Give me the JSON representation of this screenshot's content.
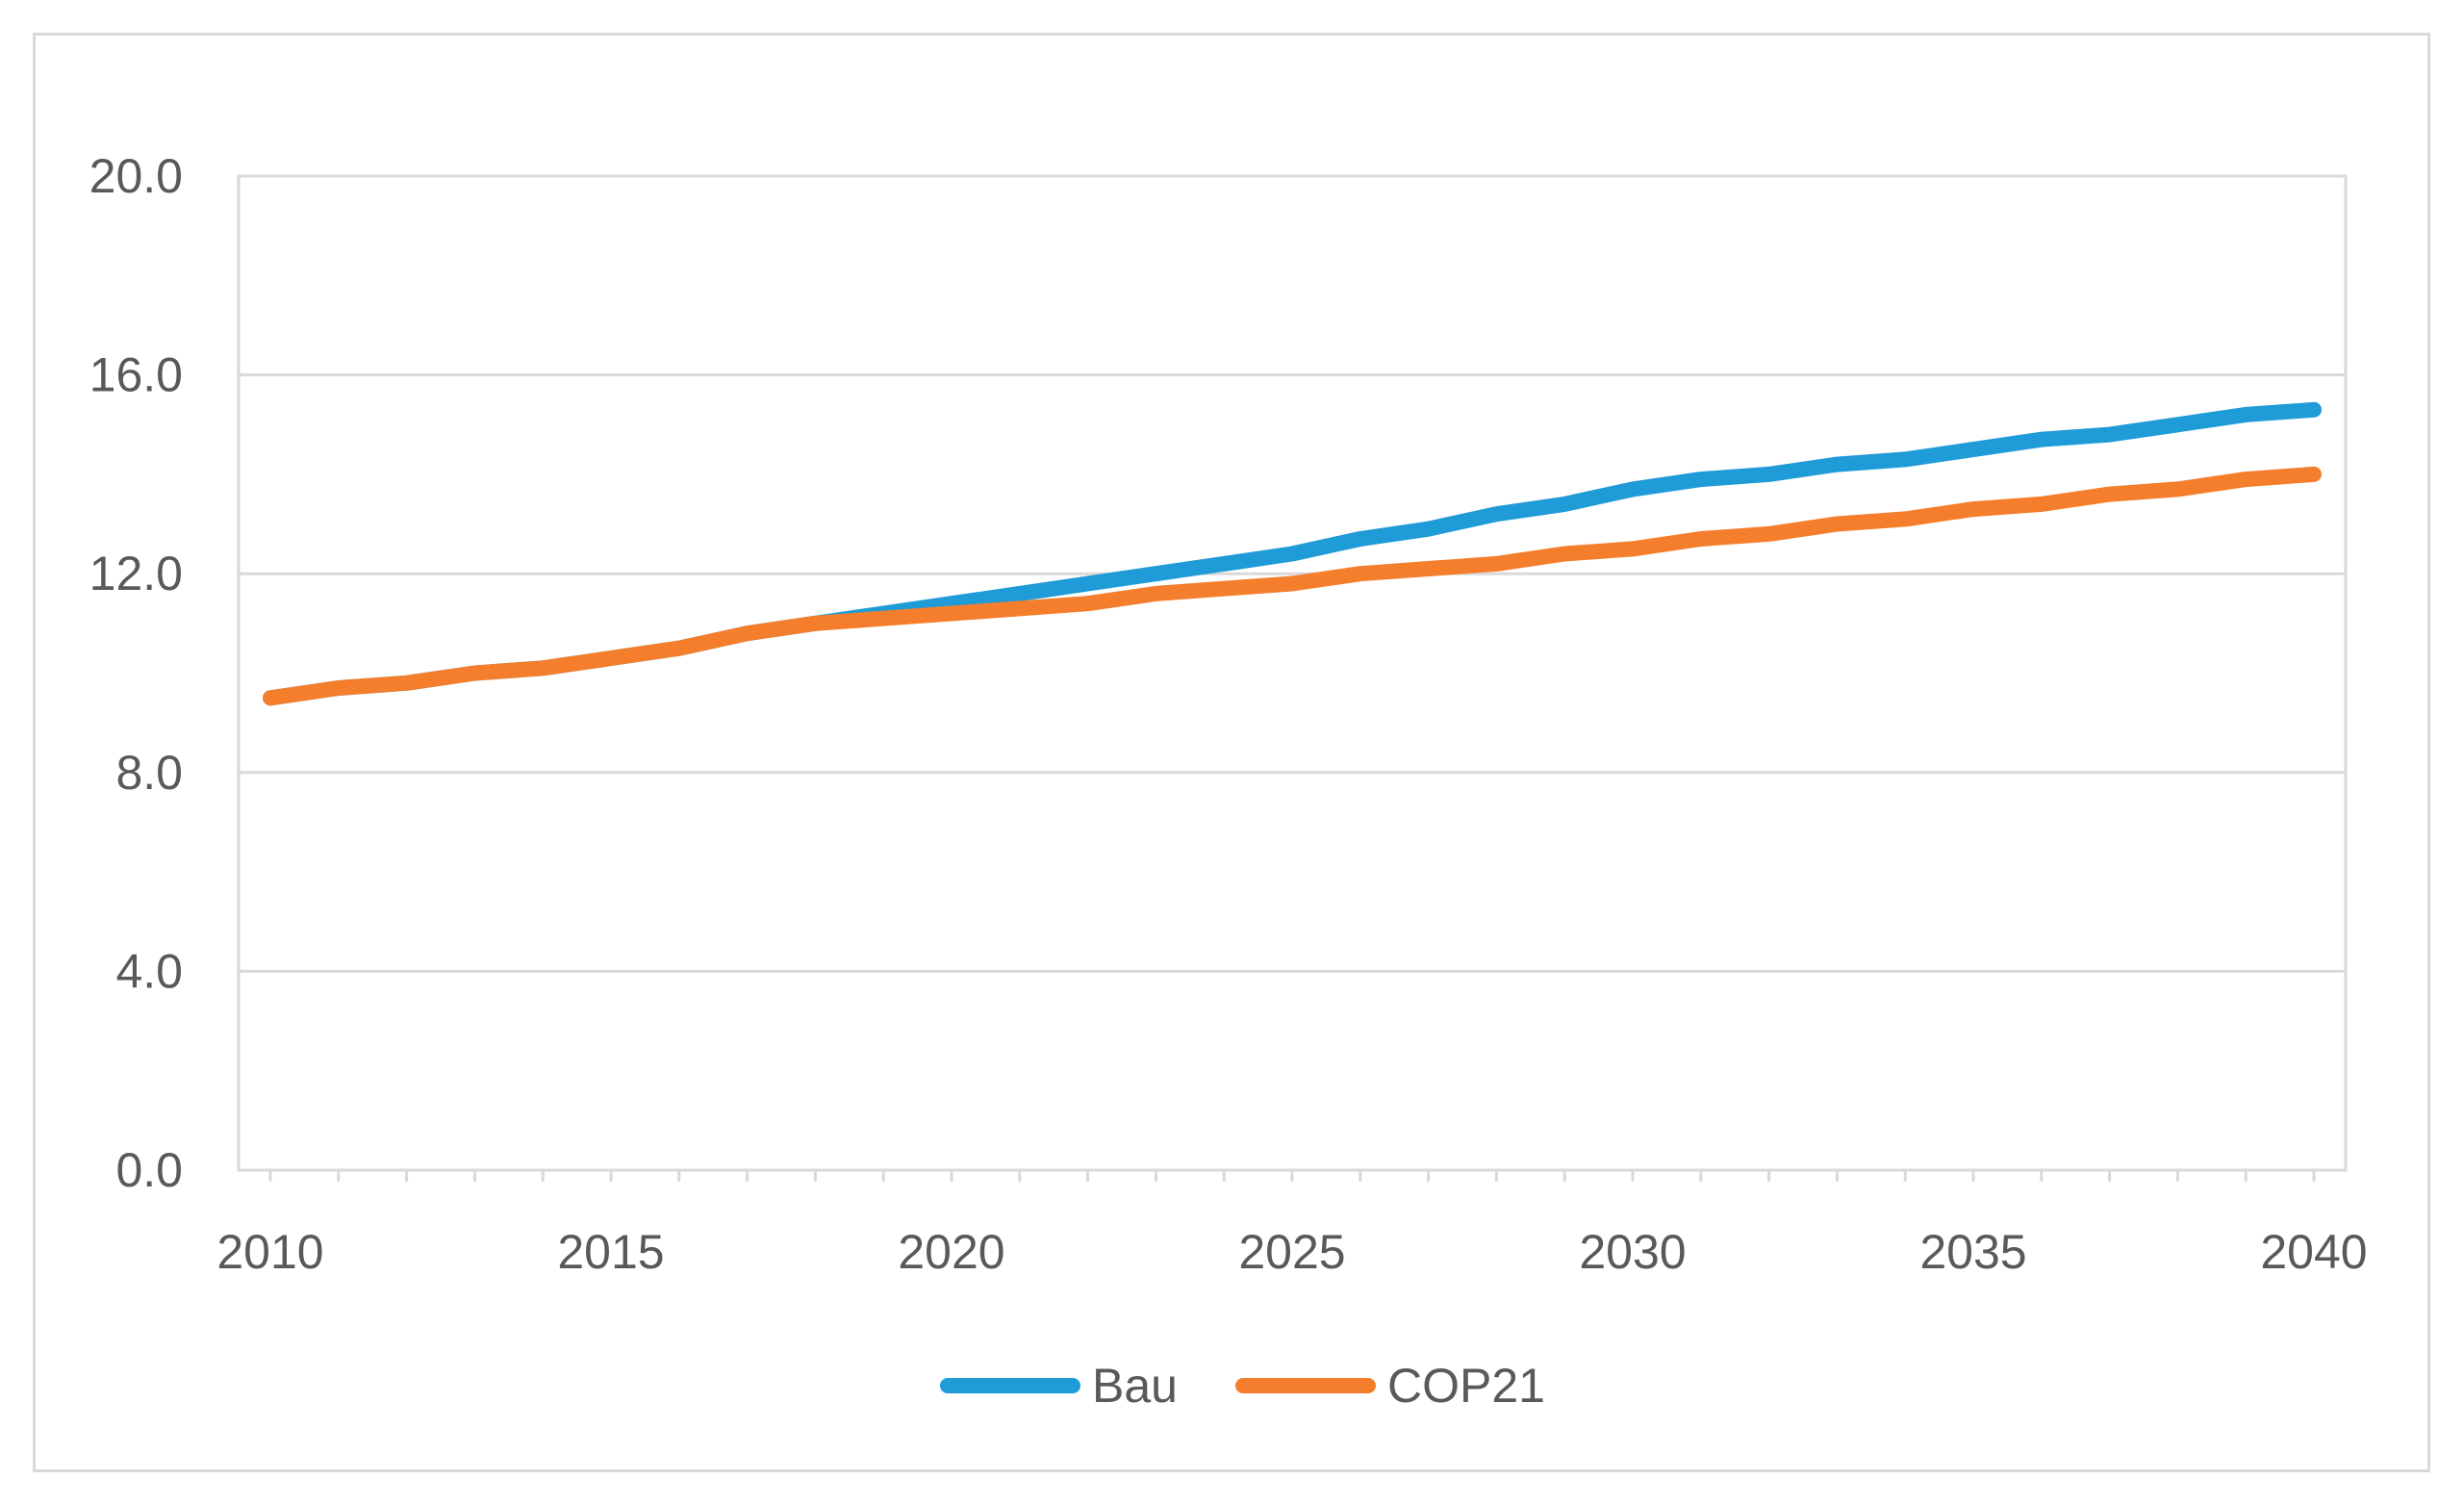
{
  "chart_data": {
    "type": "line",
    "title": "",
    "xlabel": "",
    "ylabel": "",
    "xlim": [
      2010,
      2040
    ],
    "ylim": [
      0,
      20
    ],
    "x_ticks": [
      2010,
      2015,
      2020,
      2025,
      2030,
      2035,
      2040
    ],
    "x_tick_labels": [
      "2010",
      "2015",
      "2020",
      "2025",
      "2030",
      "2035",
      "2040"
    ],
    "y_ticks": [
      0,
      4,
      8,
      12,
      16,
      20
    ],
    "y_tick_labels": [
      "0.0",
      "4.0",
      "8.0",
      "12.0",
      "16.0",
      "20.0"
    ],
    "grid": true,
    "legend_position": "bottom",
    "x": [
      2010,
      2011,
      2012,
      2013,
      2014,
      2015,
      2016,
      2017,
      2018,
      2019,
      2020,
      2021,
      2022,
      2023,
      2024,
      2025,
      2026,
      2027,
      2028,
      2029,
      2030,
      2031,
      2032,
      2033,
      2034,
      2035,
      2036,
      2037,
      2038,
      2039,
      2040
    ],
    "series": [
      {
        "name": "Bau",
        "color": "#1f9bd7",
        "values": [
          9.5,
          9.7,
          9.8,
          10.0,
          10.1,
          10.3,
          10.5,
          10.8,
          11.0,
          11.2,
          11.4,
          11.6,
          11.8,
          12.0,
          12.2,
          12.4,
          12.7,
          12.9,
          13.2,
          13.4,
          13.7,
          13.9,
          14.0,
          14.2,
          14.3,
          14.5,
          14.7,
          14.8,
          15.0,
          15.2,
          15.3
        ]
      },
      {
        "name": "COP21",
        "color": "#f47e2c",
        "values": [
          9.5,
          9.7,
          9.8,
          10.0,
          10.1,
          10.3,
          10.5,
          10.8,
          11.0,
          11.1,
          11.2,
          11.3,
          11.4,
          11.6,
          11.7,
          11.8,
          12.0,
          12.1,
          12.2,
          12.4,
          12.5,
          12.7,
          12.8,
          13.0,
          13.1,
          13.3,
          13.4,
          13.6,
          13.7,
          13.9,
          14.0
        ]
      }
    ]
  }
}
